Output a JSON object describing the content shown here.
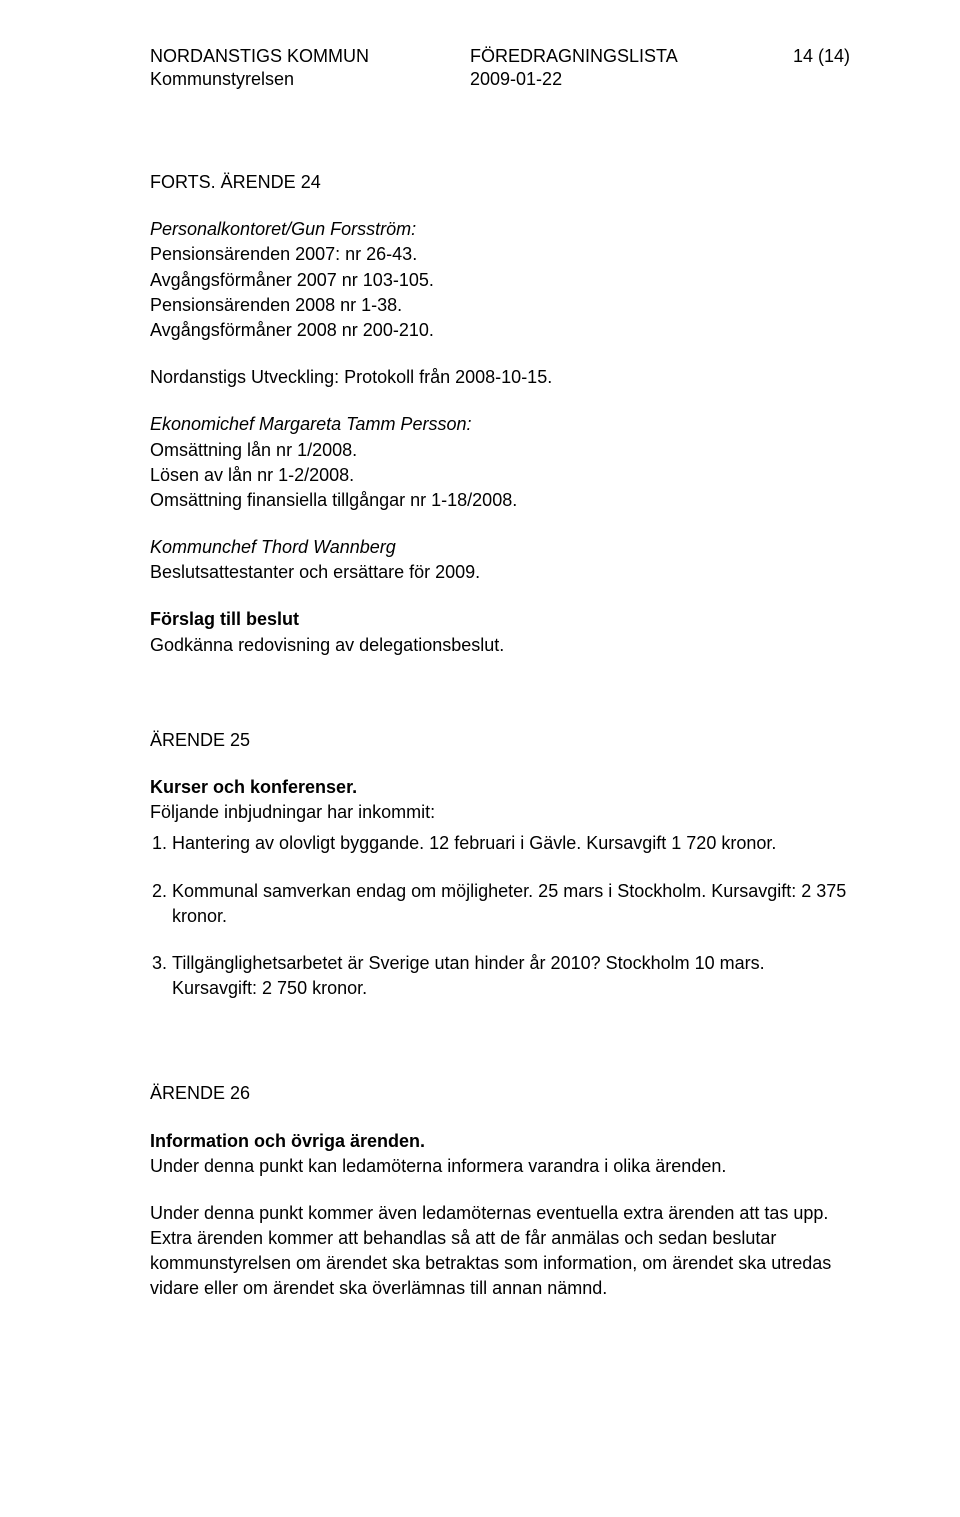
{
  "header": {
    "org": "NORDANSTIGS KOMMUN",
    "suborg": "Kommunstyrelsen",
    "centerTitle": "FÖREDRAGNINGSLISTA",
    "date": "2009-01-22",
    "pageInfo": "14 (14)"
  },
  "forts": {
    "title": "FORTS.  ÄRENDE  24",
    "p1_label": "Personalkontoret/Gun Forsström:",
    "p1_body": "Pensionsärenden 2007: nr 26-43.\nAvgångsförmåner 2007 nr 103-105.\nPensionsärenden 2008 nr 1-38.\nAvgångsförmåner 2008 nr 200-210.",
    "p2": "Nordanstigs Utveckling: Protokoll från 2008-10-15.",
    "p3_label": "Ekonomichef Margareta Tamm Persson:",
    "p3_body": "Omsättning lån nr 1/2008.\nLösen av lån nr 1-2/2008.\nOmsättning finansiella tillgångar nr 1-18/2008.",
    "p4_label": "Kommunchef Thord Wannberg",
    "p4_body": "Beslutsattestanter och ersättare för 2009.",
    "proposal_label": "Förslag till beslut",
    "proposal_body": "Godkänna redovisning av delegationsbeslut."
  },
  "arende25": {
    "title": "ÄRENDE 25",
    "heading": "Kurser och konferenser.",
    "intro": "Följande inbjudningar har inkommit:",
    "items": [
      "Hantering av olovligt byggande. 12 februari i Gävle. Kursavgift 1 720 kronor.",
      "Kommunal samverkan endag om möjligheter. 25 mars i Stockholm. Kursavgift: 2 375 kronor.",
      "Tillgänglighetsarbetet är Sverige utan hinder år 2010? Stockholm 10 mars. Kursavgift: 2 750 kronor."
    ]
  },
  "arende26": {
    "title": "ÄRENDE 26",
    "heading": "Information och övriga ärenden.",
    "p1": "Under denna punkt kan ledamöterna informera varandra i olika ärenden.",
    "p2": "Under denna punkt kommer även ledamöternas eventuella extra ärenden att tas upp. Extra ärenden kommer att behandlas så att de får anmälas och sedan beslutar kommunstyrelsen om ärendet ska betraktas som information, om ärendet ska utredas vidare eller om ärendet ska överlämnas till annan nämnd."
  }
}
